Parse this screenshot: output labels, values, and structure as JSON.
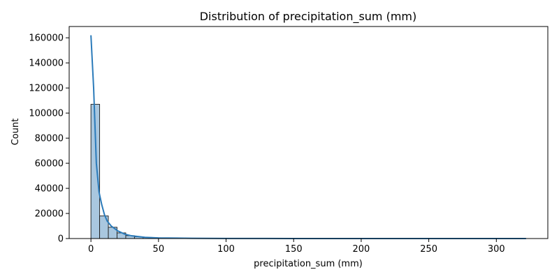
{
  "chart_data": {
    "type": "histogram",
    "title": "Distribution of precipitation_sum (mm)",
    "xlabel": "precipitation_sum (mm)",
    "ylabel": "Count",
    "xlim": [
      -16.1,
      338.1
    ],
    "ylim": [
      0,
      169000
    ],
    "x_ticks": [
      0,
      50,
      100,
      150,
      200,
      250,
      300
    ],
    "y_ticks": [
      0,
      20000,
      40000,
      60000,
      80000,
      100000,
      120000,
      140000,
      160000
    ],
    "grid": false,
    "legend": "none",
    "bins": {
      "start": 0,
      "width": 6.44,
      "count": 50,
      "values": [
        107000,
        18000,
        9000,
        4500,
        2300,
        1400,
        900,
        600,
        400,
        300,
        220,
        160,
        120,
        90,
        70,
        55,
        45,
        35,
        28,
        22,
        18,
        15,
        12,
        10,
        8,
        7,
        6,
        5,
        4,
        4,
        3,
        3,
        2,
        2,
        2,
        1,
        1,
        1,
        1,
        1,
        1,
        1,
        1,
        1,
        1,
        1,
        1,
        1,
        1,
        1
      ]
    },
    "kde": {
      "x": [
        0,
        2,
        4,
        6,
        8,
        10,
        12,
        15,
        20,
        25,
        30,
        40,
        50,
        75,
        100,
        150,
        200,
        250,
        300,
        322
      ],
      "y": [
        162000,
        120000,
        60000,
        37000,
        27000,
        19000,
        14000,
        10000,
        6000,
        3500,
        2200,
        1000,
        500,
        200,
        80,
        30,
        10,
        5,
        2,
        1
      ]
    },
    "colors": {
      "bar_fill": "#a9c7df",
      "bar_edge": "#1a1a1a",
      "kde_line": "#2b7bba",
      "axis": "#000000"
    }
  }
}
